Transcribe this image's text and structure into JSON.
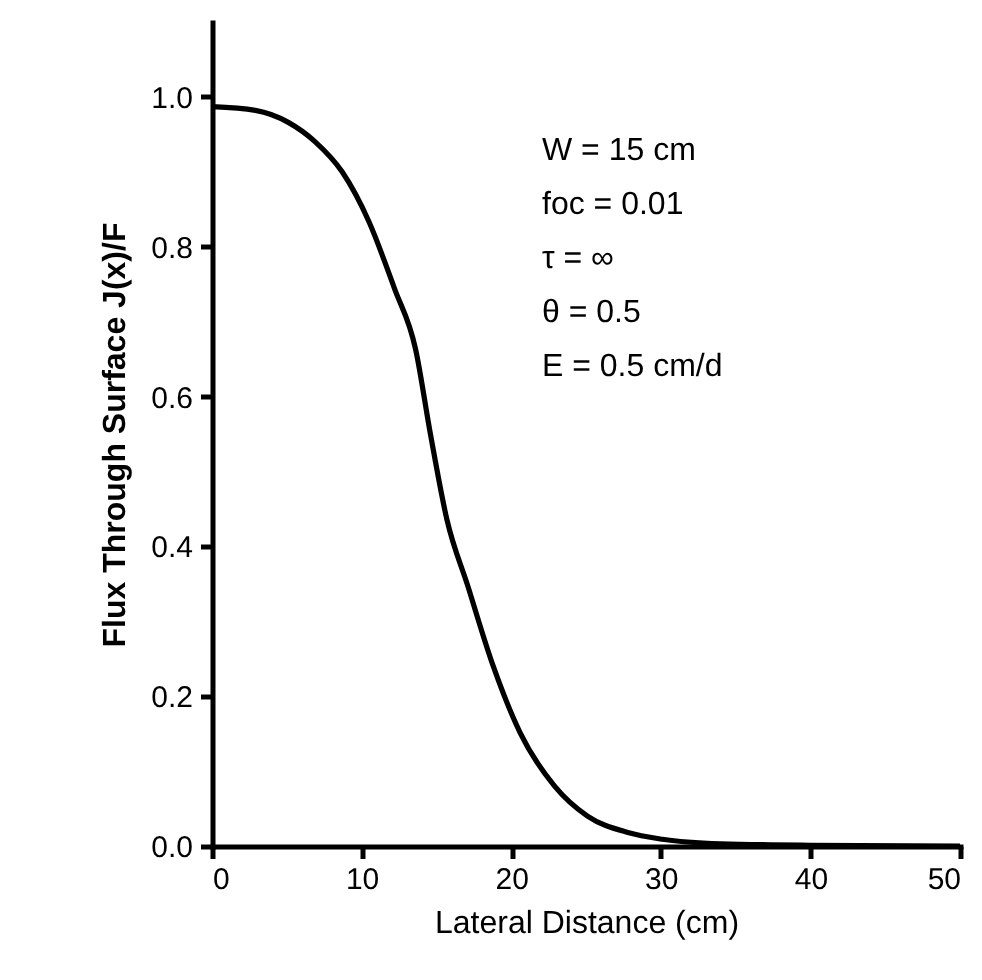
{
  "chart_data": {
    "type": "line",
    "xlabel": "Lateral Distance (cm)",
    "ylabel": "Flux Through Surface J(x)/F",
    "x": [
      0,
      2.9,
      5.1,
      6.9,
      8.7,
      10.5,
      12.2,
      13.6,
      14.6,
      15.7,
      17.1,
      18.8,
      20.6,
      22.9,
      25.1,
      27.8,
      30.1,
      34,
      40,
      50
    ],
    "series": [
      {
        "color": "#000000",
        "values": [
          0.987,
          0.982,
          0.966,
          0.94,
          0.9,
          0.833,
          0.744,
          0.664,
          0.55,
          0.436,
          0.347,
          0.24,
          0.151,
          0.08,
          0.04,
          0.018,
          0.009,
          0.003,
          0.001,
          0
        ]
      }
    ],
    "xlim": [
      0,
      50
    ],
    "xticks": [
      0,
      10,
      20,
      30,
      40,
      50
    ],
    "ylim": [
      0,
      1.1
    ],
    "yticks": [
      {
        "value": 0,
        "label": "0.0"
      },
      {
        "value": 0.2,
        "label": "0.2"
      },
      {
        "value": 0.4,
        "label": "0.4"
      },
      {
        "value": 0.6,
        "label": "0.6"
      },
      {
        "value": 0.8,
        "label": "0.8"
      },
      {
        "value": 1,
        "label": "1.0"
      }
    ],
    "annotations": [
      "W = 15 cm",
      "foc = 0.01",
      "τ  =  ∞",
      "θ  =  0.5",
      "E = 0.5 cm/d"
    ],
    "grid": false,
    "marker": "none",
    "line_style": "solid"
  }
}
